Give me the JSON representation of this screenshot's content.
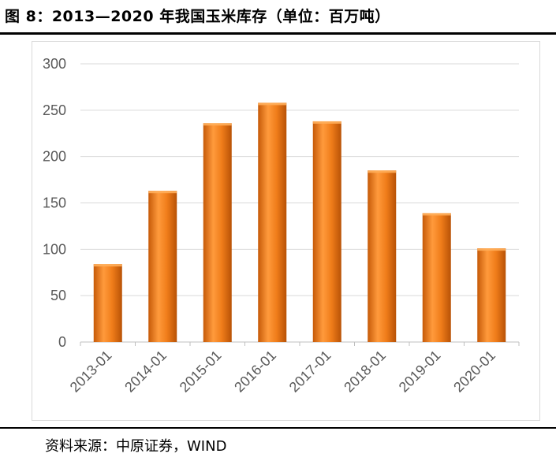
{
  "title": "图 8：2013—2020 年我国玉米库存（单位：百万吨）",
  "source": "资料来源：中原证券，WIND",
  "chart_data": {
    "type": "bar",
    "categories": [
      "2013-01",
      "2014-01",
      "2015-01",
      "2016-01",
      "2017-01",
      "2018-01",
      "2019-01",
      "2020-01"
    ],
    "values": [
      84,
      163,
      236,
      258,
      238,
      185,
      139,
      101
    ],
    "ylim": [
      0,
      300
    ],
    "yticks": [
      0,
      50,
      100,
      150,
      200,
      250,
      300
    ],
    "grid": true,
    "legend": "none",
    "colors": {
      "bar_light": "#ffae5a",
      "bar_main": "#f07d1a",
      "bar_dark": "#c65a08",
      "grid": "#d9d9d9",
      "axis": "#bfbfbf"
    }
  }
}
